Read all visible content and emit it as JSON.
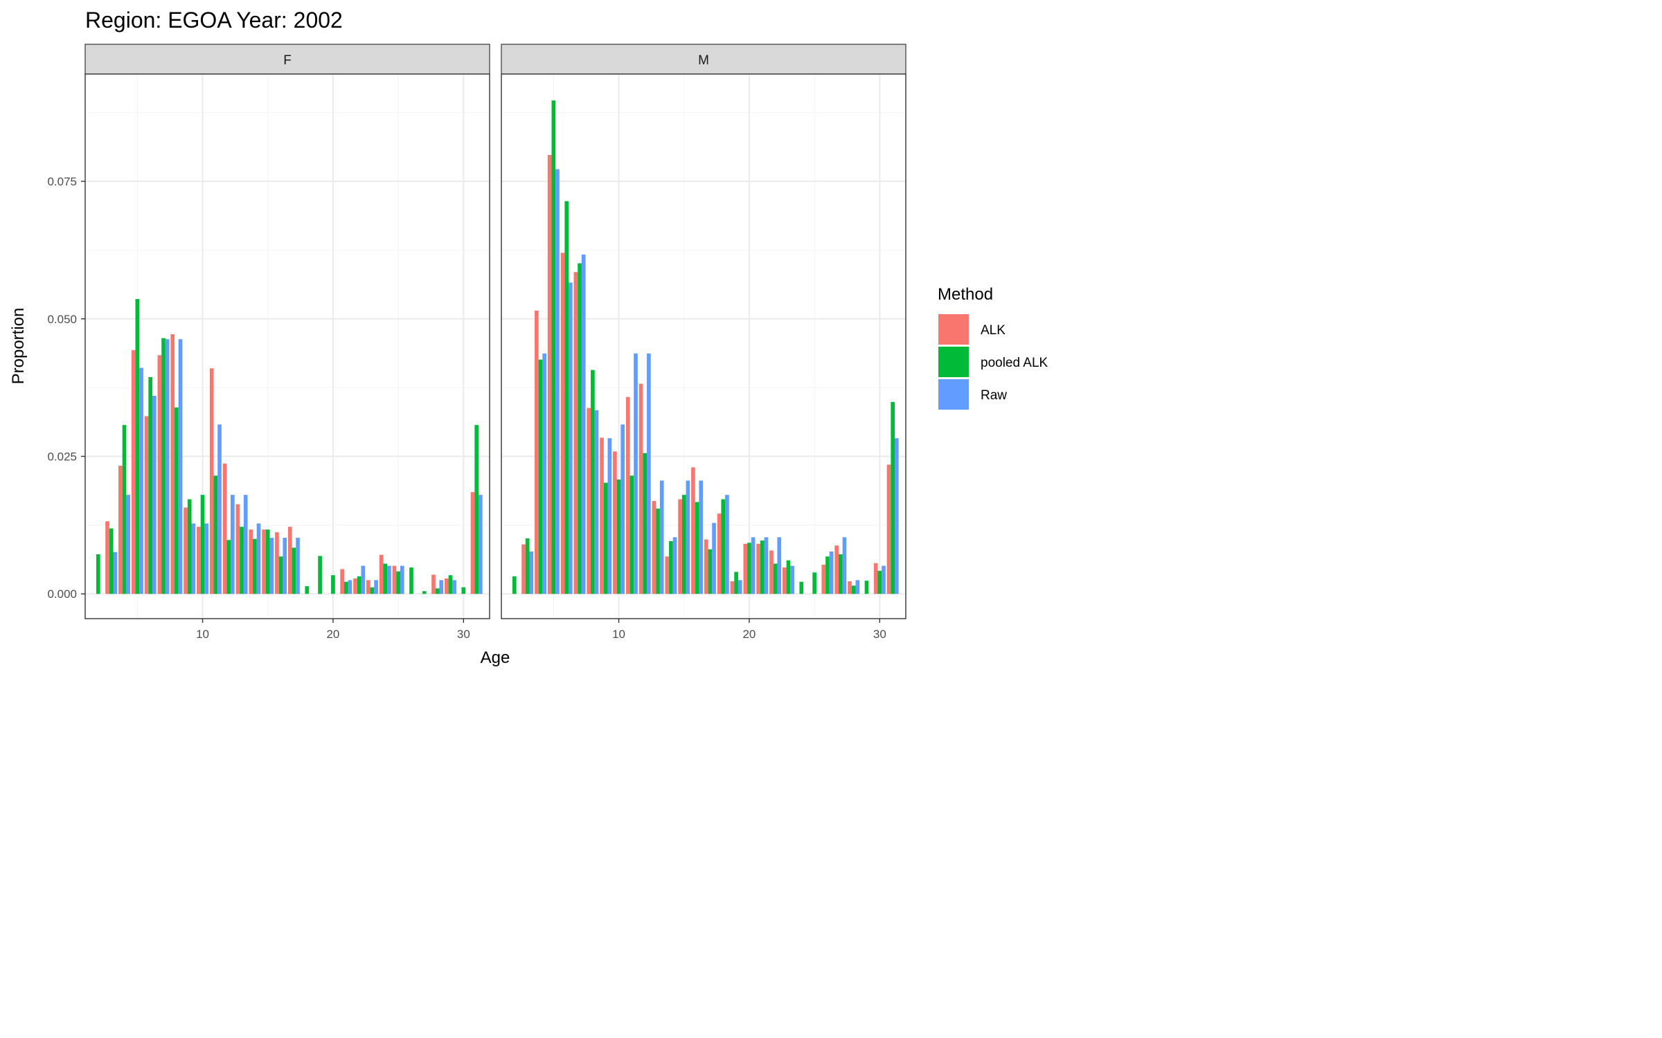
{
  "chart_data": {
    "type": "bar",
    "title": "Region: EGOA Year: 2002",
    "xlabel": "Age",
    "ylabel": "Proportion",
    "xlim": [
      1,
      32
    ],
    "ylim": [
      -0.0045,
      0.0945
    ],
    "x_ticks": [
      10,
      20,
      30
    ],
    "y_ticks": [
      0,
      0.025,
      0.05,
      0.075
    ],
    "y_tick_labels": [
      "0.000",
      "0.025",
      "0.050",
      "0.075"
    ],
    "grid": true,
    "legend": {
      "title": "Method",
      "position": "right",
      "entries": [
        {
          "name": "ALK",
          "color": "#F8766D"
        },
        {
          "name": "pooled ALK",
          "color": "#00BA38"
        },
        {
          "name": "Raw",
          "color": "#619CFF"
        }
      ]
    },
    "ages": [
      2,
      3,
      4,
      5,
      6,
      7,
      8,
      9,
      10,
      11,
      12,
      13,
      14,
      15,
      16,
      17,
      18,
      19,
      20,
      21,
      22,
      23,
      24,
      25,
      26,
      27,
      28,
      29,
      30,
      31
    ],
    "panels": [
      {
        "label": "F",
        "series": [
          {
            "name": "ALK",
            "values": [
              0,
              0.0132,
              0.0233,
              0.0443,
              0.0323,
              0.0434,
              0.0472,
              0.0157,
              0.0122,
              0.041,
              0.0237,
              0.0163,
              0.0117,
              0.0117,
              0.0112,
              0.0122,
              0,
              0,
              0,
              0.0045,
              0.0028,
              0.0025,
              0.0071,
              0.0051,
              0,
              0,
              0.0035,
              0.0028,
              0,
              0.0185
            ]
          },
          {
            "name": "pooled ALK",
            "values": [
              0.0072,
              0.0119,
              0.0307,
              0.0536,
              0.0394,
              0.0465,
              0.0339,
              0.0172,
              0.018,
              0.0215,
              0.0098,
              0.0122,
              0.01,
              0.0117,
              0.0068,
              0.0084,
              0.0014,
              0.0069,
              0.0034,
              0.0022,
              0.0032,
              0.0012,
              0.0055,
              0.0041,
              0.0048,
              0.0005,
              0.001,
              0.0034,
              0.0012,
              0.0307
            ]
          },
          {
            "name": "Raw",
            "values": [
              0,
              0.0076,
              0.018,
              0.0411,
              0.036,
              0.0463,
              0.0463,
              0.0128,
              0.0128,
              0.0308,
              0.018,
              0.018,
              0.0128,
              0.0102,
              0.0102,
              0.0102,
              0,
              0,
              0,
              0.0025,
              0.0051,
              0.0025,
              0.0051,
              0.0051,
              0,
              0,
              0.0025,
              0.0025,
              0,
              0.018
            ]
          }
        ]
      },
      {
        "label": "M",
        "series": [
          {
            "name": "ALK",
            "values": [
              0,
              0.009,
              0.0515,
              0.0798,
              0.062,
              0.0585,
              0.0338,
              0.0284,
              0.0259,
              0.0358,
              0.0382,
              0.0169,
              0.0068,
              0.0172,
              0.023,
              0.0099,
              0.0146,
              0.0023,
              0.0091,
              0.0091,
              0.0079,
              0.0048,
              0,
              0,
              0.0053,
              0.0088,
              0.0023,
              0,
              0.0056,
              0.0235
            ]
          },
          {
            "name": "pooled ALK",
            "values": [
              0.0032,
              0.0101,
              0.0426,
              0.0897,
              0.0714,
              0.0601,
              0.0407,
              0.0202,
              0.0208,
              0.0215,
              0.0256,
              0.0155,
              0.0096,
              0.018,
              0.0167,
              0.0081,
              0.0172,
              0.004,
              0.0093,
              0.0097,
              0.0055,
              0.0061,
              0.0022,
              0.0039,
              0.0068,
              0.0072,
              0.0015,
              0.0024,
              0.0042,
              0.0349
            ]
          },
          {
            "name": "Raw",
            "values": [
              0,
              0.0077,
              0.0437,
              0.0772,
              0.0566,
              0.0617,
              0.0334,
              0.0283,
              0.0308,
              0.0437,
              0.0437,
              0.0206,
              0.0103,
              0.0206,
              0.0206,
              0.0129,
              0.018,
              0.0025,
              0.0103,
              0.0103,
              0.0103,
              0.0051,
              0,
              0,
              0.0077,
              0.0103,
              0.0025,
              0,
              0.0051,
              0.0283
            ]
          }
        ]
      }
    ]
  }
}
